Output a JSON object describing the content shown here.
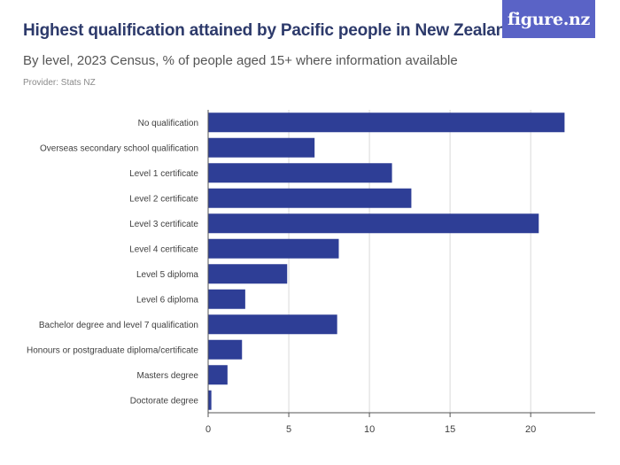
{
  "header": {
    "title": "Highest qualification attained by Pacific people in New Zealand",
    "subtitle": "By level, 2023 Census, % of people aged 15+ where information available",
    "provider": "Provider: Stats NZ",
    "logo_text": "figure.nz"
  },
  "colors": {
    "bar": "#2e3e96",
    "grid": "#d9d9d9",
    "axis": "#555555",
    "logo_bg": "#5a63c6"
  },
  "chart_data": {
    "type": "bar",
    "orientation": "horizontal",
    "categories": [
      "No qualification",
      "Overseas secondary school qualification",
      "Level 1 certificate",
      "Level 2 certificate",
      "Level 3 certificate",
      "Level 4 certificate",
      "Level 5 diploma",
      "Level 6 diploma",
      "Bachelor degree and level 7 qualification",
      "Honours or postgraduate diploma/certificate",
      "Masters degree",
      "Doctorate degree"
    ],
    "values": [
      22.1,
      6.6,
      11.4,
      12.6,
      20.5,
      8.1,
      4.9,
      2.3,
      8.0,
      2.1,
      1.2,
      0.2
    ],
    "xlim": [
      0,
      24
    ],
    "xticks": [
      0,
      5,
      10,
      15,
      20
    ],
    "grid": true
  }
}
